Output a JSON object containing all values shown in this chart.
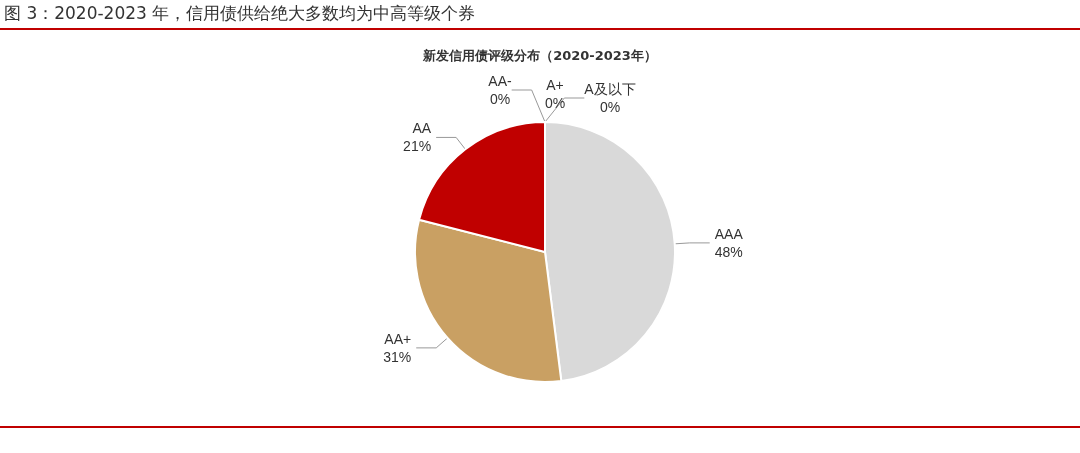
{
  "chart_data": {
    "type": "pie",
    "title": "图 3：2020-2023 年，信用债供给绝大多数均为中高等级个券",
    "subtitle": "新发信用债评级分布（2020-2023年）",
    "categories": [
      "AAA",
      "AA+",
      "AA",
      "AA-",
      "A+",
      "A及以下"
    ],
    "values": [
      48,
      31,
      21,
      0,
      0,
      0
    ],
    "value_labels": [
      "48%",
      "31%",
      "21%",
      "0%",
      "0%",
      "0%"
    ],
    "colors": [
      "#d9d9d9",
      "#c9a063",
      "#c00000",
      "#7f7f7f",
      "#595959",
      "#a6a6a6"
    ],
    "legend": false
  }
}
